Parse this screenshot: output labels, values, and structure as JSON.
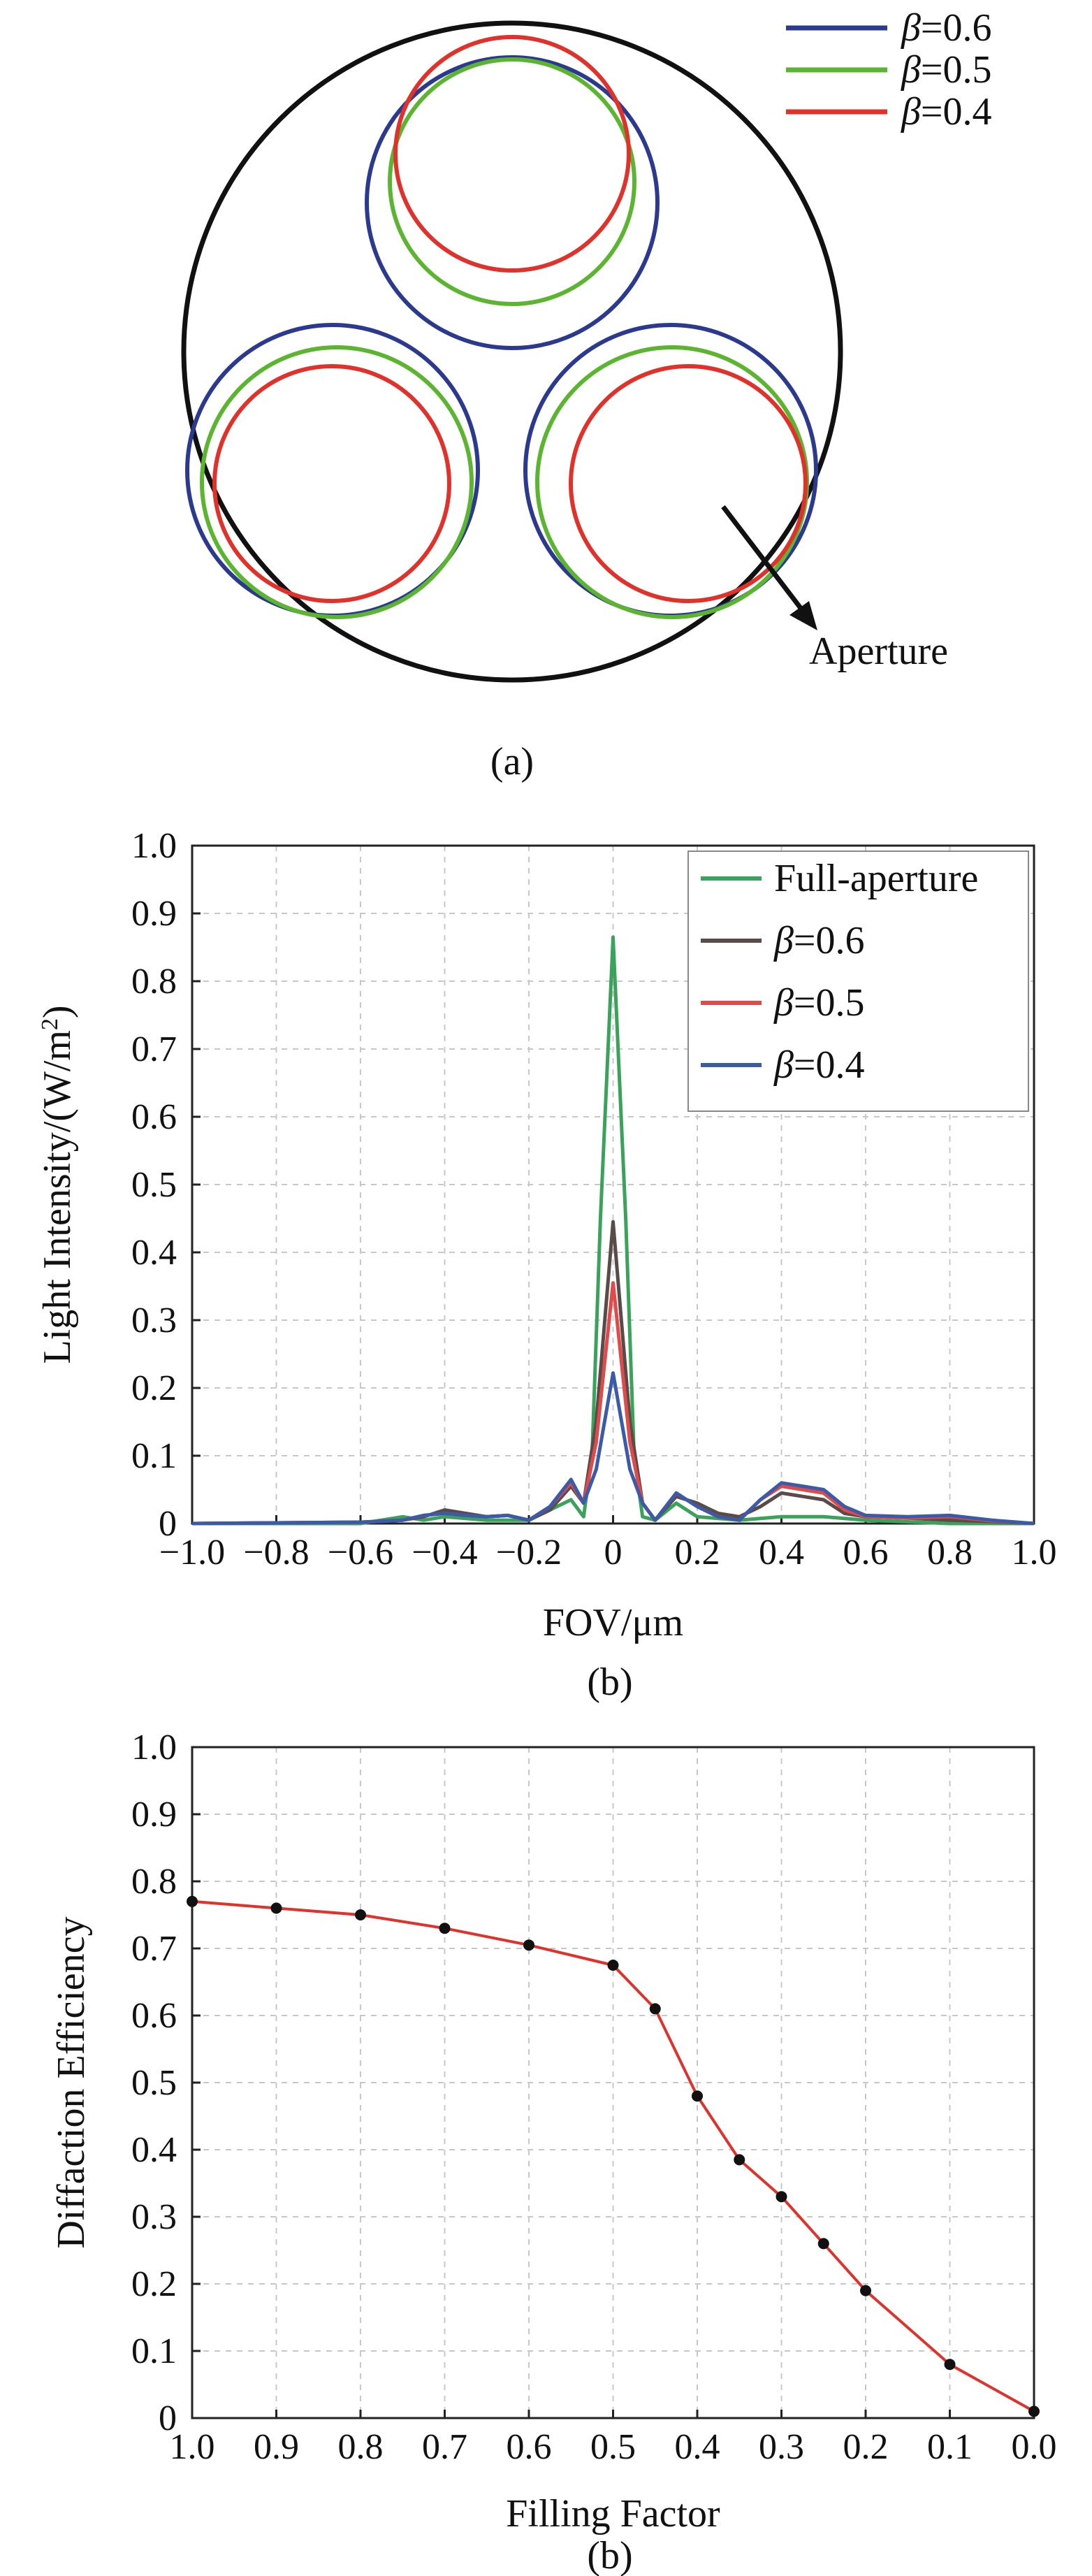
{
  "figure_a": {
    "caption": "(a)",
    "aperture_label": "Aperture",
    "legend": [
      {
        "prefix": "β",
        "suffix": "=0.6",
        "color": "#2b3a8f"
      },
      {
        "prefix": "β",
        "suffix": "=0.5",
        "color": "#5cb531"
      },
      {
        "prefix": "β",
        "suffix": "=0.4",
        "color": "#e0312a"
      }
    ]
  },
  "chart_data": [
    {
      "type": "line",
      "caption": "(b)",
      "xlabel": "FOV/μm",
      "ylabel_main": "Light Intensity/(W/m",
      "ylabel_sup": "2",
      "ylabel_tail": ")",
      "xlim": [
        -1.0,
        1.0
      ],
      "ylim": [
        0,
        1.0
      ],
      "xticks": [
        -1.0,
        -0.8,
        -0.6,
        -0.4,
        -0.2,
        0,
        0.2,
        0.4,
        0.6,
        0.8,
        1.0
      ],
      "xtick_labels": [
        "−1.0",
        "−0.8",
        "−0.6",
        "−0.4",
        "−0.2",
        "0",
        "0.2",
        "0.4",
        "0.6",
        "0.8",
        "1.0"
      ],
      "yticks": [
        0,
        0.1,
        0.2,
        0.3,
        0.4,
        0.5,
        0.6,
        0.7,
        0.8,
        0.9,
        1.0
      ],
      "ytick_labels": [
        "0",
        "0.1",
        "0.2",
        "0.3",
        "0.4",
        "0.5",
        "0.6",
        "0.7",
        "0.8",
        "0.9",
        "1.0"
      ],
      "grid": true,
      "legend_position": "top-right",
      "series": [
        {
          "name": "Full-aperture",
          "legend_prefix": "",
          "legend_suffix": "Full-aperture",
          "color": "#3aa25a",
          "x": [
            -1.0,
            -0.6,
            -0.5,
            -0.45,
            -0.4,
            -0.3,
            -0.2,
            -0.15,
            -0.1,
            -0.07,
            -0.05,
            -0.03,
            0,
            0.03,
            0.05,
            0.07,
            0.1,
            0.15,
            0.2,
            0.3,
            0.4,
            0.5,
            0.6,
            0.8,
            1.0
          ],
          "y": [
            0,
            0,
            0.01,
            0.005,
            0.01,
            0.005,
            0.005,
            0.02,
            0.035,
            0.01,
            0.1,
            0.45,
            0.865,
            0.45,
            0.1,
            0.01,
            0.005,
            0.03,
            0.01,
            0.005,
            0.01,
            0.01,
            0.005,
            0,
            0
          ]
        },
        {
          "name": "β=0.6",
          "legend_prefix": "β",
          "legend_suffix": "=0.6",
          "color": "#5a4a48",
          "x": [
            -1.0,
            -0.6,
            -0.5,
            -0.45,
            -0.4,
            -0.35,
            -0.3,
            -0.25,
            -0.2,
            -0.15,
            -0.1,
            -0.07,
            -0.04,
            0,
            0.04,
            0.07,
            0.1,
            0.15,
            0.2,
            0.25,
            0.3,
            0.35,
            0.4,
            0.45,
            0.5,
            0.55,
            0.6,
            0.7,
            0.8,
            0.9,
            1.0
          ],
          "y": [
            0,
            0.002,
            0.005,
            0.01,
            0.02,
            0.015,
            0.01,
            0.012,
            0.005,
            0.02,
            0.055,
            0.03,
            0.15,
            0.445,
            0.15,
            0.03,
            0.005,
            0.04,
            0.03,
            0.015,
            0.01,
            0.025,
            0.045,
            0.04,
            0.035,
            0.015,
            0.01,
            0.008,
            0.005,
            0.003,
            0
          ]
        },
        {
          "name": "β=0.5",
          "legend_prefix": "β",
          "legend_suffix": "=0.5",
          "color": "#e04a4a",
          "x": [
            -1.0,
            -0.6,
            -0.5,
            -0.45,
            -0.4,
            -0.35,
            -0.3,
            -0.25,
            -0.2,
            -0.15,
            -0.1,
            -0.07,
            -0.04,
            0,
            0.04,
            0.07,
            0.1,
            0.15,
            0.2,
            0.25,
            0.3,
            0.35,
            0.4,
            0.45,
            0.5,
            0.55,
            0.6,
            0.7,
            0.8,
            0.9,
            1.0
          ],
          "y": [
            0,
            0.002,
            0.005,
            0.012,
            0.015,
            0.012,
            0.01,
            0.012,
            0.005,
            0.025,
            0.06,
            0.03,
            0.12,
            0.355,
            0.12,
            0.03,
            0.005,
            0.045,
            0.025,
            0.01,
            0.005,
            0.035,
            0.055,
            0.05,
            0.045,
            0.02,
            0.01,
            0.008,
            0.01,
            0.004,
            0
          ]
        },
        {
          "name": "β=0.4",
          "legend_prefix": "β",
          "legend_suffix": "=0.4",
          "color": "#3b5aa8",
          "x": [
            -1.0,
            -0.6,
            -0.5,
            -0.45,
            -0.4,
            -0.35,
            -0.3,
            -0.25,
            -0.2,
            -0.15,
            -0.1,
            -0.07,
            -0.04,
            0,
            0.04,
            0.07,
            0.1,
            0.15,
            0.2,
            0.25,
            0.3,
            0.35,
            0.4,
            0.45,
            0.5,
            0.55,
            0.6,
            0.7,
            0.8,
            0.9,
            1.0
          ],
          "y": [
            0,
            0.002,
            0.005,
            0.012,
            0.015,
            0.012,
            0.01,
            0.012,
            0.005,
            0.025,
            0.065,
            0.03,
            0.08,
            0.222,
            0.08,
            0.03,
            0.005,
            0.045,
            0.025,
            0.01,
            0.005,
            0.035,
            0.06,
            0.055,
            0.05,
            0.025,
            0.012,
            0.01,
            0.012,
            0.005,
            0
          ]
        }
      ]
    },
    {
      "type": "line",
      "caption": "(b)",
      "xlabel": "Filling Factor",
      "ylabel": "Diffaction Efficiency",
      "xlim": [
        1.0,
        0.0
      ],
      "ylim": [
        0,
        1.0
      ],
      "xticks": [
        1.0,
        0.9,
        0.8,
        0.7,
        0.6,
        0.5,
        0.4,
        0.3,
        0.2,
        0.1,
        0.0
      ],
      "xtick_labels": [
        "1.0",
        "0.9",
        "0.8",
        "0.7",
        "0.6",
        "0.5",
        "0.4",
        "0.3",
        "0.2",
        "0.1",
        "0.0"
      ],
      "yticks": [
        0,
        0.1,
        0.2,
        0.3,
        0.4,
        0.5,
        0.6,
        0.7,
        0.8,
        0.9,
        1.0
      ],
      "ytick_labels": [
        "0",
        "0.1",
        "0.2",
        "0.3",
        "0.4",
        "0.5",
        "0.6",
        "0.7",
        "0.8",
        "0.9",
        "1.0"
      ],
      "grid": true,
      "series": [
        {
          "color": "#e0312a",
          "marker_color": "#111111",
          "x": [
            1.0,
            0.9,
            0.8,
            0.7,
            0.6,
            0.5,
            0.45,
            0.4,
            0.35,
            0.3,
            0.25,
            0.2,
            0.1,
            0.0
          ],
          "y": [
            0.77,
            0.76,
            0.75,
            0.73,
            0.705,
            0.675,
            0.61,
            0.48,
            0.385,
            0.33,
            0.26,
            0.19,
            0.08,
            0.01
          ]
        }
      ]
    }
  ]
}
